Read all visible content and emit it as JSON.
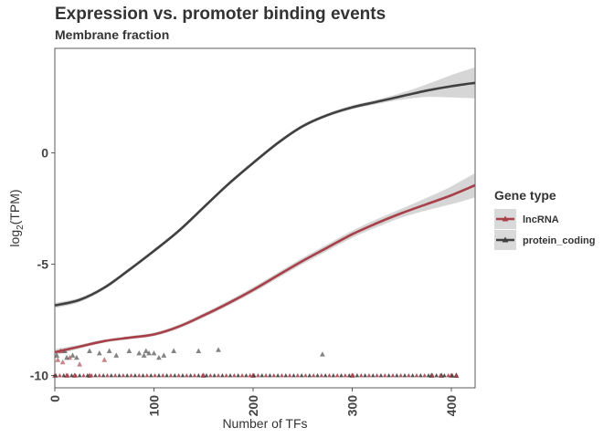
{
  "chart_data": {
    "type": "scatter",
    "title": "Expression vs. promoter binding events",
    "subtitle": "Membrane fraction",
    "xlabel": "Number of TFs",
    "ylabel_main": "log",
    "ylabel_sub": "2",
    "ylabel_tail": "(TPM)",
    "xlim": [
      0,
      424
    ],
    "ylim": [
      -10.55,
      4.7
    ],
    "xticks": [
      0,
      100,
      200,
      300,
      400
    ],
    "xtick_labels": [
      "0",
      "100",
      "200",
      "300",
      "400"
    ],
    "yticks": [
      -10,
      -5,
      0
    ],
    "ytick_labels": [
      "-10",
      "-5",
      "0"
    ],
    "grid": false,
    "legend": {
      "title": "Gene type",
      "position": "right",
      "entries": [
        {
          "name": "lncRNA",
          "color": "#a8404a"
        },
        {
          "name": "protein_coding",
          "color": "#404040"
        }
      ]
    },
    "series": [
      {
        "name": "lncRNA",
        "color": "#a8404a",
        "smooth_x": [
          0,
          25,
          50,
          75,
          100,
          125,
          150,
          175,
          200,
          225,
          250,
          275,
          300,
          325,
          350,
          375,
          400,
          424
        ],
        "smooth_y": [
          -8.95,
          -8.7,
          -8.45,
          -8.3,
          -8.15,
          -7.8,
          -7.3,
          -6.75,
          -6.15,
          -5.5,
          -4.85,
          -4.25,
          -3.65,
          -3.15,
          -2.7,
          -2.3,
          -1.9,
          -1.45
        ],
        "band_halfwidth": [
          0.14,
          0.09,
          0.07,
          0.07,
          0.08,
          0.09,
          0.1,
          0.11,
          0.12,
          0.13,
          0.14,
          0.15,
          0.16,
          0.18,
          0.2,
          0.28,
          0.4,
          0.55
        ],
        "points_x": [
          0,
          3,
          6,
          8,
          12,
          15,
          20,
          25,
          35,
          50,
          150,
          200,
          300,
          400,
          405
        ],
        "points_y": [
          -10,
          -9.3,
          -8.9,
          -9.4,
          -10,
          -9.2,
          -10,
          -9.5,
          -10,
          -9.3,
          -10,
          -10,
          -10,
          -10,
          -10
        ]
      },
      {
        "name": "protein_coding",
        "color": "#404040",
        "smooth_x": [
          0,
          25,
          50,
          75,
          100,
          125,
          150,
          175,
          200,
          225,
          250,
          275,
          300,
          325,
          350,
          375,
          400,
          424
        ],
        "smooth_y": [
          -6.85,
          -6.6,
          -6.05,
          -5.25,
          -4.4,
          -3.5,
          -2.45,
          -1.4,
          -0.45,
          0.45,
          1.2,
          1.7,
          2.05,
          2.3,
          2.55,
          2.8,
          3.0,
          3.15
        ],
        "band_halfwidth": [
          0.12,
          0.1,
          0.08,
          0.08,
          0.08,
          0.08,
          0.08,
          0.08,
          0.08,
          0.08,
          0.08,
          0.08,
          0.09,
          0.1,
          0.15,
          0.28,
          0.5,
          0.7
        ],
        "points_x": [
          2,
          10,
          12,
          18,
          22,
          35,
          45,
          55,
          62,
          75,
          85,
          90,
          92,
          95,
          100,
          105,
          110,
          120,
          145,
          165,
          270,
          380,
          390,
          405
        ],
        "points_y": [
          -9.1,
          -8.9,
          -9.2,
          -9.1,
          -9.2,
          -8.9,
          -9.0,
          -8.9,
          -9.1,
          -8.9,
          -9.0,
          -9.1,
          -8.9,
          -9.0,
          -9.0,
          -9.2,
          -9.1,
          -8.9,
          -8.9,
          -8.85,
          -9.05,
          -10,
          -10,
          -10
        ]
      }
    ]
  }
}
